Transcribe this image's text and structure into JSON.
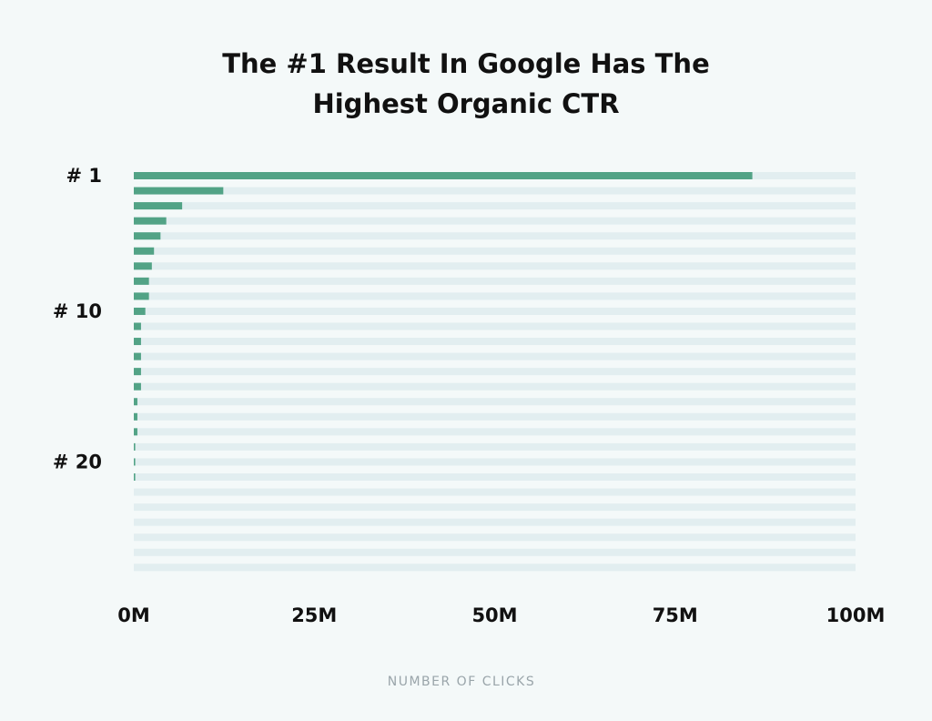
{
  "chart_data": {
    "type": "hbar",
    "title": "The #1 Result In Google Has The Highest Organic CTR",
    "x_label": "NUMBER OF CLICKS",
    "categories": [
      "# 1",
      null,
      null,
      null,
      null,
      null,
      null,
      null,
      null,
      "# 10",
      null,
      null,
      null,
      null,
      null,
      null,
      null,
      null,
      null,
      "# 20",
      null,
      null,
      null,
      null,
      null,
      null,
      null
    ],
    "values": [
      85.7,
      12.4,
      6.7,
      4.5,
      3.7,
      2.8,
      2.5,
      2.1,
      2.1,
      1.6,
      1.0,
      1.0,
      1.0,
      1.0,
      1.0,
      0.5,
      0.5,
      0.5,
      0.2,
      0.2,
      0.2,
      0,
      0,
      0,
      0,
      0,
      0
    ],
    "color": "#52a386",
    "xlim": [
      0,
      100
    ],
    "xticks": [
      {
        "value": 0,
        "label": "0M"
      },
      {
        "value": 25,
        "label": "25M"
      },
      {
        "value": 50,
        "label": "50M"
      },
      {
        "value": 75,
        "label": "75M"
      },
      {
        "value": 100,
        "label": "100M"
      }
    ]
  }
}
